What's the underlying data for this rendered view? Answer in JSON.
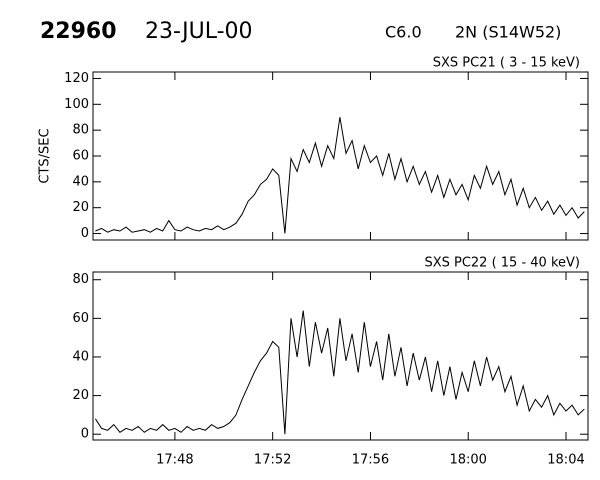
{
  "header": {
    "id": "22960",
    "date": "23-JUL-00",
    "class": "C6.0",
    "location": "2N (S14W52)"
  },
  "chart_data": [
    {
      "type": "line",
      "title": "SXS PC21  (  3 - 15 keV)",
      "ylabel": "CTS/SEC",
      "color": "#000000",
      "xlim": [
        1064.65,
        1084.9
      ],
      "ylim": [
        -5,
        125
      ],
      "yticks": [
        0,
        20,
        40,
        60,
        80,
        100,
        120
      ],
      "show_xtick_labels": false,
      "xticks": [
        {
          "value": 1068,
          "label": "17:48"
        },
        {
          "value": 1072,
          "label": "17:52"
        },
        {
          "value": 1076,
          "label": "17:56"
        },
        {
          "value": 1080,
          "label": "18:00"
        },
        {
          "value": 1084,
          "label": "18:04"
        }
      ],
      "x": [
        1064.75,
        1065,
        1065.25,
        1065.5,
        1065.75,
        1066,
        1066.25,
        1066.5,
        1066.75,
        1067,
        1067.25,
        1067.5,
        1067.75,
        1068,
        1068.25,
        1068.5,
        1068.75,
        1069,
        1069.25,
        1069.5,
        1069.75,
        1070,
        1070.25,
        1070.5,
        1070.75,
        1071,
        1071.25,
        1071.5,
        1071.75,
        1072,
        1072.25,
        1072.5,
        1072.75,
        1073,
        1073.25,
        1073.5,
        1073.75,
        1074,
        1074.25,
        1074.5,
        1074.75,
        1075,
        1075.25,
        1075.5,
        1075.75,
        1076,
        1076.25,
        1076.5,
        1076.75,
        1077,
        1077.25,
        1077.5,
        1077.75,
        1078,
        1078.25,
        1078.5,
        1078.75,
        1079,
        1079.25,
        1079.5,
        1079.75,
        1080,
        1080.25,
        1080.5,
        1080.75,
        1081,
        1081.25,
        1081.5,
        1081.75,
        1082,
        1082.25,
        1082.5,
        1082.75,
        1083,
        1083.25,
        1083.5,
        1083.75,
        1084,
        1084.25,
        1084.5,
        1084.75
      ],
      "values": [
        2,
        4,
        1,
        3,
        2,
        5,
        1,
        2,
        3,
        1,
        4,
        2,
        10,
        3,
        2,
        5,
        3,
        2,
        4,
        3,
        6,
        3,
        5,
        8,
        15,
        25,
        30,
        38,
        42,
        50,
        45,
        0,
        58,
        48,
        65,
        55,
        70,
        52,
        68,
        58,
        90,
        62,
        72,
        50,
        68,
        55,
        60,
        45,
        62,
        42,
        58,
        40,
        52,
        38,
        48,
        32,
        45,
        28,
        42,
        30,
        38,
        26,
        45,
        35,
        52,
        38,
        48,
        30,
        42,
        22,
        35,
        20,
        28,
        18,
        25,
        15,
        22,
        14,
        20,
        12,
        17
      ]
    },
    {
      "type": "line",
      "title": "SXS PC22  ( 15 - 40 keV)",
      "color": "#000000",
      "xlim": [
        1064.65,
        1084.9
      ],
      "ylim": [
        -3,
        84
      ],
      "yticks": [
        0,
        20,
        40,
        60,
        80
      ],
      "show_xtick_labels": true,
      "xticks": [
        {
          "value": 1068,
          "label": "17:48"
        },
        {
          "value": 1072,
          "label": "17:52"
        },
        {
          "value": 1076,
          "label": "17:56"
        },
        {
          "value": 1080,
          "label": "18:00"
        },
        {
          "value": 1084,
          "label": "18:04"
        }
      ],
      "x": [
        1064.75,
        1065,
        1065.25,
        1065.5,
        1065.75,
        1066,
        1066.25,
        1066.5,
        1066.75,
        1067,
        1067.25,
        1067.5,
        1067.75,
        1068,
        1068.25,
        1068.5,
        1068.75,
        1069,
        1069.25,
        1069.5,
        1069.75,
        1070,
        1070.25,
        1070.5,
        1070.75,
        1071,
        1071.25,
        1071.5,
        1071.75,
        1072,
        1072.25,
        1072.5,
        1072.75,
        1073,
        1073.25,
        1073.5,
        1073.75,
        1074,
        1074.25,
        1074.5,
        1074.75,
        1075,
        1075.25,
        1075.5,
        1075.75,
        1076,
        1076.25,
        1076.5,
        1076.75,
        1077,
        1077.25,
        1077.5,
        1077.75,
        1078,
        1078.25,
        1078.5,
        1078.75,
        1079,
        1079.25,
        1079.5,
        1079.75,
        1080,
        1080.25,
        1080.5,
        1080.75,
        1081,
        1081.25,
        1081.5,
        1081.75,
        1082,
        1082.25,
        1082.5,
        1082.75,
        1083,
        1083.25,
        1083.5,
        1083.75,
        1084,
        1084.25,
        1084.5,
        1084.75
      ],
      "values": [
        8,
        3,
        2,
        5,
        1,
        3,
        2,
        4,
        1,
        3,
        2,
        5,
        2,
        3,
        1,
        4,
        2,
        3,
        2,
        5,
        3,
        4,
        6,
        10,
        18,
        25,
        32,
        38,
        42,
        48,
        45,
        0,
        60,
        40,
        64,
        35,
        58,
        42,
        55,
        30,
        60,
        38,
        52,
        32,
        58,
        35,
        48,
        28,
        52,
        30,
        45,
        25,
        42,
        28,
        40,
        22,
        38,
        20,
        35,
        18,
        32,
        22,
        38,
        25,
        40,
        28,
        35,
        22,
        30,
        15,
        25,
        12,
        18,
        14,
        20,
        10,
        16,
        12,
        15,
        10,
        13
      ]
    }
  ]
}
